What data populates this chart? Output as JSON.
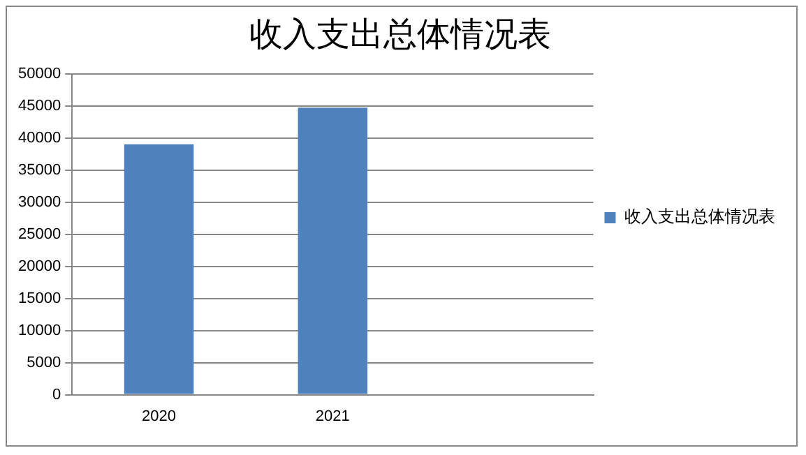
{
  "chart_data": {
    "type": "bar",
    "title": "收入支出总体情况表",
    "categories": [
      "2020",
      "2021",
      null
    ],
    "series": [
      {
        "name": "收入支出总体情况表",
        "color": "#4f81bd",
        "values": [
          39000,
          44700,
          null
        ]
      }
    ],
    "ylim": [
      0,
      50000
    ],
    "yticks": [
      0,
      5000,
      10000,
      15000,
      20000,
      25000,
      30000,
      35000,
      40000,
      45000,
      50000
    ],
    "grid": "y",
    "legend": "right"
  }
}
